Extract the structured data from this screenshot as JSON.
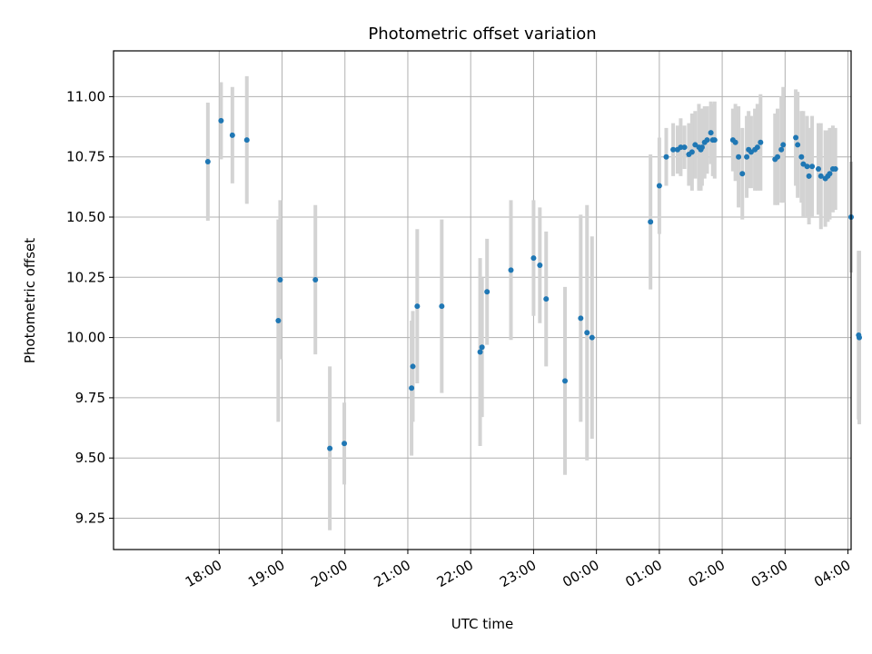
{
  "chart_data": {
    "type": "scatter",
    "title": "Photometric offset variation",
    "xlabel": "UTC time",
    "ylabel": "Photometric offset",
    "xlim": [
      -8.68,
      3.05
    ],
    "ylim": [
      9.12,
      11.19
    ],
    "grid": true,
    "x_ticks": [
      -7,
      -6,
      -5,
      -4,
      -3,
      -2,
      -1,
      0,
      1,
      2,
      3
    ],
    "x_tick_labels": [
      "18:00",
      "19:00",
      "20:00",
      "21:00",
      "22:00",
      "23:00",
      "00:00",
      "01:00",
      "02:00",
      "03:00",
      "04:00"
    ],
    "y_ticks": [
      9.25,
      9.5,
      9.75,
      10.0,
      10.25,
      10.5,
      10.75,
      11.0
    ],
    "y_tick_labels": [
      "9.25",
      "9.50",
      "9.75",
      "10.00",
      "10.25",
      "10.50",
      "10.75",
      "11.00"
    ],
    "colors": {
      "point": "#1f77b4",
      "errorbar": "#d3d3d3",
      "grid": "#b0b0b0"
    },
    "series": [
      {
        "x": [
          -7.18,
          -6.97,
          -6.79,
          -6.56,
          -6.06,
          -6.03,
          -5.47,
          -5.24,
          -5.01,
          -3.94,
          -3.92,
          -3.85,
          -3.46,
          -2.85,
          -2.82,
          -2.74,
          -2.36,
          -2.0,
          -1.9,
          -1.8,
          -1.5,
          -1.25,
          -1.15,
          -1.07,
          -0.14,
          0.0,
          0.11,
          0.22,
          0.29,
          0.34,
          0.4,
          0.47,
          0.52,
          0.57,
          0.63,
          0.66,
          0.68,
          0.72,
          0.76,
          0.82,
          0.85,
          0.88,
          1.17,
          1.21,
          1.26,
          1.32,
          1.39,
          1.42,
          1.46,
          1.52,
          1.56,
          1.61,
          1.84,
          1.88,
          1.94,
          1.97,
          2.17,
          2.2,
          2.26,
          2.29,
          2.35,
          2.38,
          2.43,
          2.53,
          2.57,
          2.64,
          2.68,
          2.71,
          2.76,
          2.8,
          3.05,
          3.17,
          3.18
        ],
        "y": [
          10.73,
          10.9,
          10.84,
          10.82,
          10.07,
          10.24,
          10.24,
          9.54,
          9.56,
          9.79,
          9.88,
          10.13,
          10.13,
          9.94,
          9.96,
          10.19,
          10.28,
          10.33,
          10.3,
          10.16,
          9.82,
          10.08,
          10.02,
          10.0,
          10.48,
          10.63,
          10.75,
          10.78,
          10.78,
          10.79,
          10.79,
          10.76,
          10.77,
          10.8,
          10.79,
          10.78,
          10.79,
          10.81,
          10.82,
          10.85,
          10.82,
          10.82,
          10.82,
          10.81,
          10.75,
          10.68,
          10.75,
          10.78,
          10.77,
          10.78,
          10.79,
          10.81,
          10.74,
          10.75,
          10.78,
          10.8,
          10.83,
          10.8,
          10.75,
          10.72,
          10.71,
          10.67,
          10.71,
          10.7,
          10.67,
          10.66,
          10.67,
          10.68,
          10.7,
          10.7,
          10.5,
          10.01,
          10.0
        ],
        "err": [
          0.245,
          0.16,
          0.2,
          0.265,
          0.42,
          0.33,
          0.31,
          0.34,
          0.17,
          0.28,
          0.23,
          0.32,
          0.36,
          0.39,
          0.29,
          0.22,
          0.29,
          0.24,
          0.24,
          0.28,
          0.39,
          0.43,
          0.53,
          0.42,
          0.28,
          0.2,
          0.12,
          0.11,
          0.1,
          0.12,
          0.09,
          0.13,
          0.16,
          0.14,
          0.18,
          0.17,
          0.16,
          0.15,
          0.14,
          0.13,
          0.15,
          0.16,
          0.13,
          0.16,
          0.21,
          0.19,
          0.17,
          0.16,
          0.15,
          0.17,
          0.18,
          0.2,
          0.19,
          0.2,
          0.22,
          0.24,
          0.2,
          0.22,
          0.19,
          0.22,
          0.21,
          0.2,
          0.21,
          0.19,
          0.22,
          0.2,
          0.19,
          0.19,
          0.18,
          0.17,
          0.23,
          0.35,
          0.36
        ]
      }
    ]
  }
}
